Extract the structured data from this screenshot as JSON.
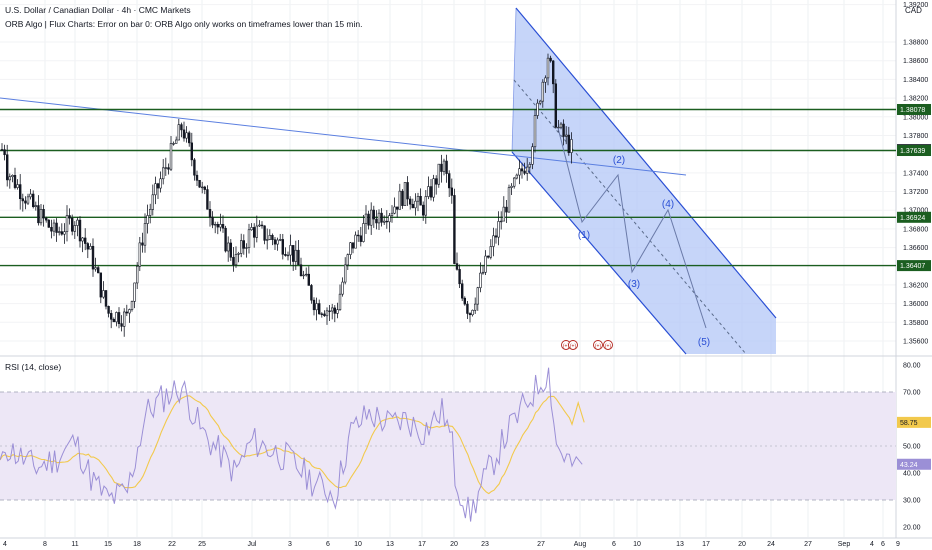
{
  "header": {
    "title": "U.S. Dollar / Canadian Dollar · 4h · CMC Markets",
    "indicator_error": "ORB Algo | Flux Charts: Error on bar 0: ORB Algo only works on timeframes lower than 15 min.",
    "currency": "CAD"
  },
  "rsi_header": "RSI (14, close)",
  "colors": {
    "bull": "#131722",
    "bear": "#131722",
    "level_line": "#1b5e20",
    "trendline": "#5b7fe0",
    "channel_fill": "#b3c7f7",
    "channel_edge": "#2a4fd4",
    "rsi_line": "#9b8fd6",
    "rsi_ma": "#f2c94c",
    "rsi_band": "#ede7f6",
    "badge_current": "#131722"
  },
  "price_axis": {
    "min": 1.3545,
    "max": 1.3925,
    "ticks": [
      "1.39200",
      "1.38800",
      "1.38600",
      "1.38400",
      "1.38200",
      "1.38000",
      "1.37800",
      "1.37400",
      "1.37200",
      "1.37000",
      "1.36800",
      "1.36600",
      "1.36200",
      "1.36000",
      "1.35800",
      "1.35600"
    ],
    "badges": [
      {
        "label": "1.38078",
        "value": 1.38078,
        "kind": "level"
      },
      {
        "label": "1.37648",
        "value": 1.37648,
        "kind": "current"
      },
      {
        "label": "1.37639",
        "value": 1.37639,
        "kind": "level"
      },
      {
        "label": "1.36924",
        "value": 1.36924,
        "kind": "level"
      },
      {
        "label": "1.36407",
        "value": 1.36407,
        "kind": "level"
      }
    ]
  },
  "rsi_axis": {
    "ticks": [
      "80.00",
      "70.00",
      "50.00",
      "40.00",
      "30.00",
      "20.00"
    ],
    "badges": [
      {
        "label": "58.75",
        "value": 58.75,
        "kind": "ma"
      },
      {
        "label": "43.24",
        "value": 43.24,
        "kind": "rsi"
      }
    ],
    "band": [
      30,
      70
    ],
    "mid": 50
  },
  "time_axis": {
    "labels": [
      "4",
      "8",
      "11",
      "15",
      "18",
      "22",
      "25",
      "Jul",
      "3",
      "6",
      "10",
      "13",
      "17",
      "20",
      "23",
      "27",
      "Aug",
      "6",
      "10",
      "13",
      "17",
      "20",
      "24",
      "27",
      "Sep",
      "4",
      "6",
      "9"
    ]
  },
  "wave_labels": [
    "(1)",
    "(2)",
    "(3)",
    "(4)",
    "(5)"
  ],
  "event_markers": [
    "(+)",
    "(+)",
    "(+)",
    "(+)"
  ],
  "chart_data": {
    "type": "candlestick",
    "instrument": "U.S. Dollar / Canadian Dollar",
    "timeframe": "4h",
    "horizontal_levels": [
      1.38078,
      1.37639,
      1.36924,
      1.36407
    ],
    "last_price": 1.37648,
    "close_path": [
      {
        "date": "Jun 3",
        "close": 1.3745
      },
      {
        "date": "Jun 6",
        "close": 1.37
      },
      {
        "date": "Jun 8",
        "close": 1.3675
      },
      {
        "date": "Jun 10",
        "close": 1.369
      },
      {
        "date": "Jun 12",
        "close": 1.365
      },
      {
        "date": "Jun 14",
        "close": 1.359
      },
      {
        "date": "Jun 16",
        "close": 1.3585
      },
      {
        "date": "Jun 18",
        "close": 1.369
      },
      {
        "date": "Jun 20",
        "close": 1.374
      },
      {
        "date": "Jun 22",
        "close": 1.379
      },
      {
        "date": "Jun 24",
        "close": 1.372
      },
      {
        "date": "Jun 26",
        "close": 1.368
      },
      {
        "date": "Jun 28",
        "close": 1.3645
      },
      {
        "date": "Jun 30",
        "close": 1.368
      },
      {
        "date": "Jul 2",
        "close": 1.366
      },
      {
        "date": "Jul 4",
        "close": 1.36
      },
      {
        "date": "Jul 6",
        "close": 1.359
      },
      {
        "date": "Jul 8",
        "close": 1.366
      },
      {
        "date": "Jul 10",
        "close": 1.369
      },
      {
        "date": "Jul 12",
        "close": 1.37
      },
      {
        "date": "Jul 14",
        "close": 1.372
      },
      {
        "date": "Jul 16",
        "close": 1.37
      },
      {
        "date": "Jul 18",
        "close": 1.375
      },
      {
        "date": "Jul 20",
        "close": 1.37
      },
      {
        "date": "Jul 22",
        "close": 1.364
      },
      {
        "date": "Jul 24",
        "close": 1.359
      },
      {
        "date": "Jul 26",
        "close": 1.364
      },
      {
        "date": "Jul 28",
        "close": 1.371
      },
      {
        "date": "Jul 30",
        "close": 1.376
      },
      {
        "date": "Jul 31",
        "close": 1.383
      },
      {
        "date": "Aug 1",
        "close": 1.387
      },
      {
        "date": "Aug 2",
        "close": 1.379
      },
      {
        "date": "Aug 4",
        "close": 1.3765
      }
    ],
    "rsi": {
      "period": 14,
      "last": 43.24,
      "ma_last": 58.75,
      "ylim": [
        20,
        80
      ],
      "path": [
        {
          "date": "Jun 3",
          "value": 50
        },
        {
          "date": "Jun 6",
          "value": 42
        },
        {
          "date": "Jun 8",
          "value": 45
        },
        {
          "date": "Jun 10",
          "value": 52
        },
        {
          "date": "Jun 12",
          "value": 38
        },
        {
          "date": "Jun 14",
          "value": 30
        },
        {
          "date": "Jun 16",
          "value": 33
        },
        {
          "date": "Jun 18",
          "value": 62
        },
        {
          "date": "Jun 20",
          "value": 68
        },
        {
          "date": "Jun 22",
          "value": 72
        },
        {
          "date": "Jun 24",
          "value": 55
        },
        {
          "date": "Jun 26",
          "value": 48
        },
        {
          "date": "Jun 28",
          "value": 40
        },
        {
          "date": "Jun 30",
          "value": 52
        },
        {
          "date": "Jul 2",
          "value": 45
        },
        {
          "date": "Jul 4",
          "value": 36
        },
        {
          "date": "Jul 6",
          "value": 32
        },
        {
          "date": "Jul 8",
          "value": 55
        },
        {
          "date": "Jul 10",
          "value": 62
        },
        {
          "date": "Jul 12",
          "value": 58
        },
        {
          "date": "Jul 14",
          "value": 60
        },
        {
          "date": "Jul 16",
          "value": 55
        },
        {
          "date": "Jul 18",
          "value": 63
        },
        {
          "date": "Jul 20",
          "value": 48
        },
        {
          "date": "Jul 22",
          "value": 40
        },
        {
          "date": "Jul 24",
          "value": 24
        },
        {
          "date": "Jul 26",
          "value": 38
        },
        {
          "date": "Jul 28",
          "value": 55
        },
        {
          "date": "Jul 30",
          "value": 68
        },
        {
          "date": "Jul 31",
          "value": 74
        },
        {
          "date": "Aug 1",
          "value": 78
        },
        {
          "date": "Aug 2",
          "value": 50
        },
        {
          "date": "Aug 4",
          "value": 43
        }
      ]
    }
  }
}
